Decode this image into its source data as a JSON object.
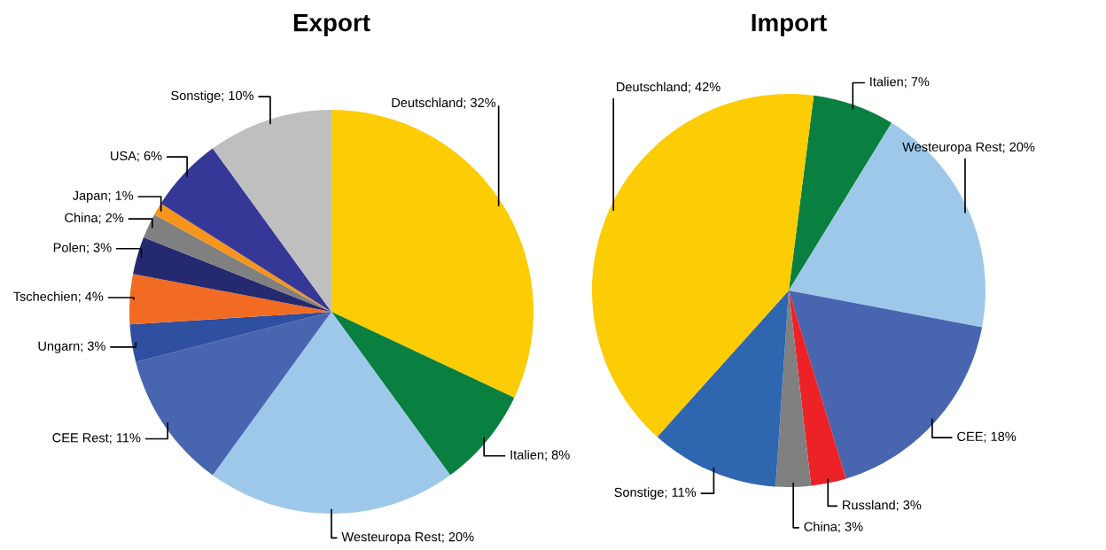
{
  "chart_data": [
    {
      "type": "pie",
      "title": "Export",
      "categories": [
        "Deutschland",
        "Italien",
        "Westeuropa Rest",
        "CEE Rest",
        "Ungarn",
        "Tschechien",
        "Polen",
        "China",
        "Japan",
        "USA",
        "Sonstige"
      ],
      "values": [
        32,
        8,
        20,
        11,
        3,
        4,
        3,
        2,
        1,
        6,
        10
      ],
      "value_labels": [
        "32%",
        "8%",
        "20%",
        "11%",
        "3%",
        "4%",
        "3%",
        "2%",
        "1%",
        "6%",
        "10%"
      ],
      "colors": [
        "#fccc04",
        "#0a8040",
        "#9ec8ea",
        "#4866b0",
        "#2f4fa0",
        "#f26b22",
        "#252970",
        "#808080",
        "#f7941d",
        "#353896",
        "#bfbfbf"
      ]
    },
    {
      "type": "pie",
      "title": "Import",
      "categories": [
        "Italien",
        "Westeuropa Rest",
        "CEE",
        "Russland",
        "China",
        "Sonstige",
        "Deutschland"
      ],
      "values": [
        7,
        20,
        18,
        3,
        3,
        11,
        42
      ],
      "value_labels": [
        "7%",
        "20%",
        "18%",
        "3%",
        "3%",
        "11%",
        "42%"
      ],
      "colors": [
        "#0a8040",
        "#9ec8ea",
        "#4866b0",
        "#ec2227",
        "#808080",
        "#2e66b0",
        "#fccc04"
      ]
    }
  ]
}
